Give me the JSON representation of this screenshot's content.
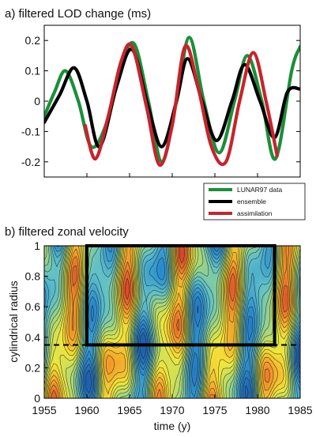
{
  "chart_data": [
    {
      "type": "line",
      "title": "a) filtered LOD change (ms)",
      "xlabel": "",
      "ylabel": "",
      "xlim": [
        1955,
        1985
      ],
      "ylim": [
        -0.25,
        0.25
      ],
      "yticks": [
        -0.2,
        -0.1,
        0,
        0.1,
        0.2
      ],
      "ytick_labels": [
        "-0.2",
        "-0.1",
        "0",
        "0.1",
        "0.2"
      ],
      "grid": false,
      "legend_position": "bottom-right, outside axes",
      "series": [
        {
          "name": "LUNAR97 data",
          "color": "#1a8f3a",
          "x": [
            1955,
            1956.2,
            1957.5,
            1959.0,
            1960.5,
            1962.2,
            1963.8,
            1965.5,
            1967.2,
            1968.8,
            1970.5,
            1972.0,
            1973.7,
            1975.5,
            1977.3,
            1978.8,
            1980.5,
            1982.1,
            1984.0,
            1985
          ],
          "y": [
            -0.05,
            0.03,
            0.1,
            0.0,
            -0.15,
            -0.08,
            0.1,
            0.19,
            0.0,
            -0.2,
            0.0,
            0.21,
            0.0,
            -0.17,
            0.0,
            0.15,
            0.0,
            -0.19,
            0.1,
            0.18
          ]
        },
        {
          "name": "ensemble",
          "color": "#000000",
          "x": [
            1955,
            1956.8,
            1958.5,
            1960.0,
            1961.5,
            1963.5,
            1965.3,
            1967.2,
            1968.8,
            1970.5,
            1971.8,
            1973.5,
            1975.2,
            1977.0,
            1978.5,
            1980.3,
            1982.0,
            1983.5,
            1985
          ],
          "y": [
            -0.07,
            0.02,
            0.11,
            0.0,
            -0.15,
            0.05,
            0.17,
            -0.02,
            -0.15,
            0.0,
            0.14,
            0.0,
            -0.13,
            0.0,
            0.12,
            0.0,
            -0.12,
            0.03,
            0.04
          ]
        },
        {
          "name": "assimilation",
          "color": "#c8232c",
          "x": [
            1959.8,
            1961.0,
            1962.5,
            1964.0,
            1965.3,
            1967.0,
            1968.5,
            1970.0,
            1971.5,
            1973.0,
            1974.6,
            1976.3,
            1977.9,
            1979.5,
            1981.0,
            1982.3
          ],
          "y": [
            -0.08,
            -0.19,
            -0.05,
            0.13,
            0.18,
            -0.02,
            -0.21,
            -0.08,
            0.18,
            0.05,
            -0.15,
            -0.2,
            0.0,
            0.16,
            0.0,
            -0.18
          ]
        }
      ]
    },
    {
      "type": "heatmap",
      "title": "b) filtered zonal velocity",
      "xlabel": "time (y)",
      "ylabel": "cylindrical radius",
      "xlim": [
        1955,
        1985
      ],
      "ylim": [
        0,
        1
      ],
      "xticks": [
        1955,
        1960,
        1965,
        1970,
        1975,
        1980,
        1985
      ],
      "xtick_labels": [
        "1955",
        "1960",
        "1965",
        "1970",
        "1975",
        "1980",
        "1985"
      ],
      "yticks": [
        0,
        0.2,
        0.4,
        0.6,
        0.8,
        1
      ],
      "ytick_labels": [
        "0",
        "0.2",
        "0.4",
        "0.6",
        "0.8",
        "1"
      ],
      "colormap": [
        "#1f5fb0",
        "#2c8fd0",
        "#5fc0c8",
        "#a8d878",
        "#f2e63a",
        "#f4a02a",
        "#d8402a"
      ],
      "contours": true,
      "annotations": {
        "box": {
          "x": [
            1960,
            1982
          ],
          "y": [
            0.35,
            1.0
          ]
        },
        "dashed_line_y": 0.35
      }
    }
  ]
}
